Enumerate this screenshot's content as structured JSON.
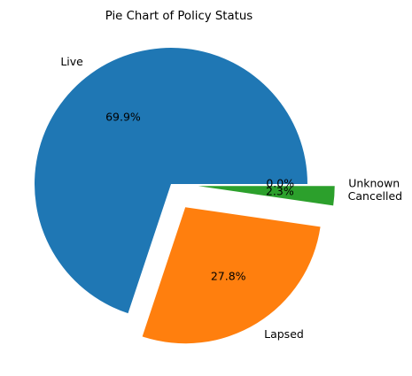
{
  "chart_data": {
    "type": "pie",
    "title": "Pie Chart of Policy Status",
    "categories": [
      "Live",
      "Lapsed",
      "Cancelled",
      "Unknown"
    ],
    "values": [
      69.9,
      27.8,
      2.3,
      0.0
    ],
    "percent_labels": [
      "69.9%",
      "27.8%",
      "2.3%",
      "0.0%"
    ],
    "colors": [
      "#1f77b4",
      "#ff7f0e",
      "#2ca02c",
      "#d62728"
    ],
    "exploded": [
      false,
      true,
      true,
      true
    ],
    "start_angle_deg": 0,
    "direction": "counterclockwise",
    "legend": "none"
  }
}
